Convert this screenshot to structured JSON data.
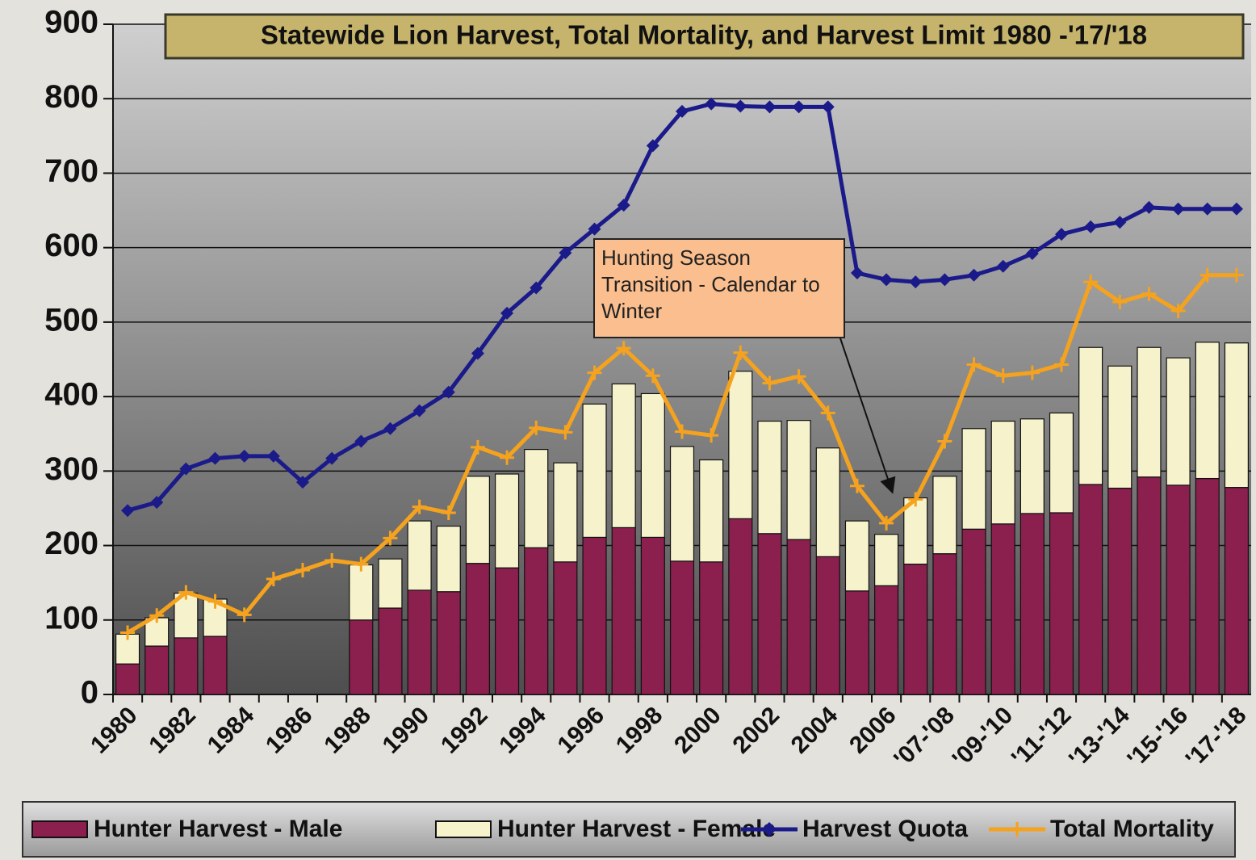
{
  "chart_data": {
    "type": "bar",
    "title": "Statewide Lion Harvest, Total Mortality, and Harvest Limit 1980 -'17/'18",
    "annotation": "Hunting Season Transition - Calendar to Winter",
    "categories": [
      "1980",
      null,
      "1982",
      null,
      "1984",
      null,
      "1986",
      null,
      "1988",
      null,
      "1990",
      null,
      "1992",
      null,
      "1994",
      null,
      "1996",
      null,
      "1998",
      null,
      "2000",
      null,
      "2002",
      null,
      "2004",
      null,
      "2006",
      null,
      "'07-'08",
      null,
      "'09-'10",
      null,
      "'11-'12",
      null,
      "'13-'14",
      null,
      "'15-'16",
      null,
      "'17-'18"
    ],
    "series": [
      {
        "name": "Hunter Harvest - Male",
        "kind": "bar",
        "color": "#8b1f4e",
        "values": [
          41,
          65,
          76,
          78,
          null,
          null,
          null,
          null,
          100,
          116,
          140,
          138,
          176,
          170,
          197,
          178,
          211,
          224,
          211,
          179,
          178,
          236,
          216,
          208,
          185,
          139,
          146,
          175,
          189,
          222,
          229,
          243,
          244,
          282,
          277,
          292,
          281,
          290,
          278
        ]
      },
      {
        "name": "Hunter Harvest - Female",
        "kind": "bar",
        "color": "#f6f3cc",
        "values": [
          40,
          38,
          60,
          50,
          null,
          null,
          null,
          null,
          74,
          66,
          93,
          88,
          117,
          126,
          132,
          133,
          179,
          193,
          193,
          154,
          137,
          198,
          151,
          160,
          146,
          94,
          69,
          89,
          104,
          135,
          138,
          127,
          134,
          184,
          164,
          174,
          171,
          183,
          194
        ]
      },
      {
        "name": "Harvest Quota",
        "kind": "line",
        "marker": "diamond",
        "color": "#1b1a8a",
        "values": [
          247,
          258,
          303,
          317,
          320,
          320,
          285,
          317,
          340,
          357,
          381,
          406,
          458,
          512,
          546,
          593,
          625,
          657,
          737,
          783,
          793,
          790,
          789,
          789,
          789,
          566,
          557,
          554,
          557,
          563,
          575,
          592,
          618,
          628,
          634,
          654,
          652,
          652,
          652
        ]
      },
      {
        "name": "Total Mortality",
        "kind": "line",
        "marker": "plus",
        "color": "#f5a21e",
        "values": [
          83,
          106,
          137,
          125,
          107,
          155,
          167,
          180,
          175,
          210,
          252,
          244,
          332,
          318,
          358,
          352,
          432,
          465,
          428,
          353,
          348,
          459,
          418,
          427,
          378,
          280,
          230,
          262,
          340,
          443,
          428,
          432,
          443,
          554,
          527,
          538,
          515,
          563,
          563
        ]
      }
    ],
    "ylim": [
      0,
      900
    ],
    "yticks": [
      0,
      100,
      200,
      300,
      400,
      500,
      600,
      700,
      800,
      900
    ],
    "grid": true,
    "legend": "bottom"
  }
}
